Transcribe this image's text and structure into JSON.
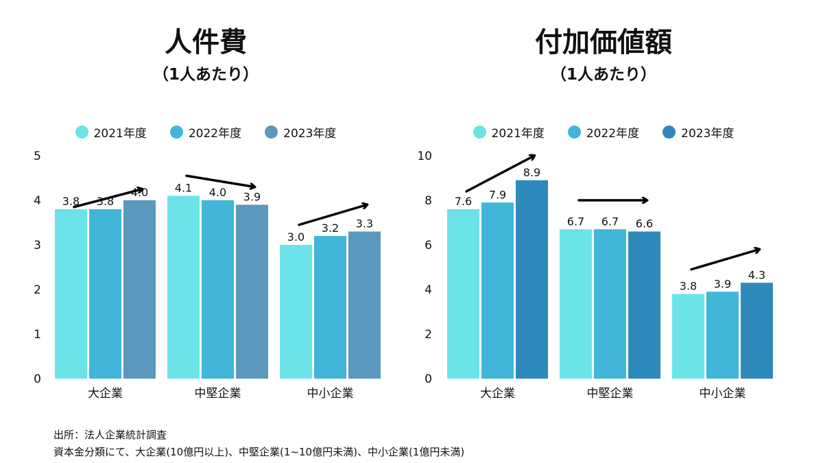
{
  "colors": {
    "left": [
      "#6ce3e8",
      "#41b6d8",
      "#5b98bd"
    ],
    "right": [
      "#6ce3e8",
      "#41b6d8",
      "#2e8aba"
    ]
  },
  "footer": {
    "line1": "出所：法人企業統計調査",
    "line2": "資本金分類にて、大企業(10億円以上)、中堅企業(1~10億円未満)、中小企業(1億円未満)"
  },
  "chart_data": [
    {
      "type": "bar",
      "title": "人件費",
      "subtitle": "（1人あたり）",
      "categories": [
        "大企業",
        "中堅企業",
        "中小企業"
      ],
      "series": [
        {
          "name": "2021年度",
          "values": [
            3.8,
            4.1,
            3.0
          ]
        },
        {
          "name": "2022年度",
          "values": [
            3.8,
            4.0,
            3.2
          ]
        },
        {
          "name": "2023年度",
          "values": [
            4.0,
            3.9,
            3.3
          ]
        }
      ],
      "data_labels": [
        [
          "3.8",
          "3.8",
          "4.0"
        ],
        [
          "4.1",
          "4.0",
          "3.9"
        ],
        [
          "3.0",
          "3.2",
          "3.3"
        ]
      ],
      "ylim": [
        0,
        5
      ],
      "yticks": [
        "0",
        "1",
        "2",
        "3",
        "4",
        "5"
      ],
      "trend_arrows": [
        {
          "category": 0,
          "from": 3.85,
          "to": 4.25
        },
        {
          "category": 1,
          "from": 4.55,
          "to": 4.3
        },
        {
          "category": 2,
          "from": 3.45,
          "to": 3.9
        }
      ],
      "legend": "top-center",
      "grid": false
    },
    {
      "type": "bar",
      "title": "付加価値額",
      "subtitle": "（1人あたり）",
      "categories": [
        "大企業",
        "中堅企業",
        "中小企業"
      ],
      "series": [
        {
          "name": "2021年度",
          "values": [
            7.6,
            6.7,
            3.8
          ]
        },
        {
          "name": "2022年度",
          "values": [
            7.9,
            6.7,
            3.9
          ]
        },
        {
          "name": "2023年度",
          "values": [
            8.9,
            6.6,
            4.3
          ]
        }
      ],
      "data_labels": [
        [
          "7.6",
          "7.9",
          "8.9"
        ],
        [
          "6.7",
          "6.7",
          "6.6"
        ],
        [
          "3.8",
          "3.9",
          "4.3"
        ]
      ],
      "ylim": [
        0,
        10
      ],
      "yticks": [
        "0",
        "2",
        "4",
        "6",
        "8",
        "10"
      ],
      "trend_arrows": [
        {
          "category": 0,
          "from": 8.4,
          "to": 10.0
        },
        {
          "category": 1,
          "from": 8.0,
          "to": 8.0
        },
        {
          "category": 2,
          "from": 4.9,
          "to": 5.8
        }
      ],
      "legend": "top-center",
      "grid": false
    }
  ]
}
